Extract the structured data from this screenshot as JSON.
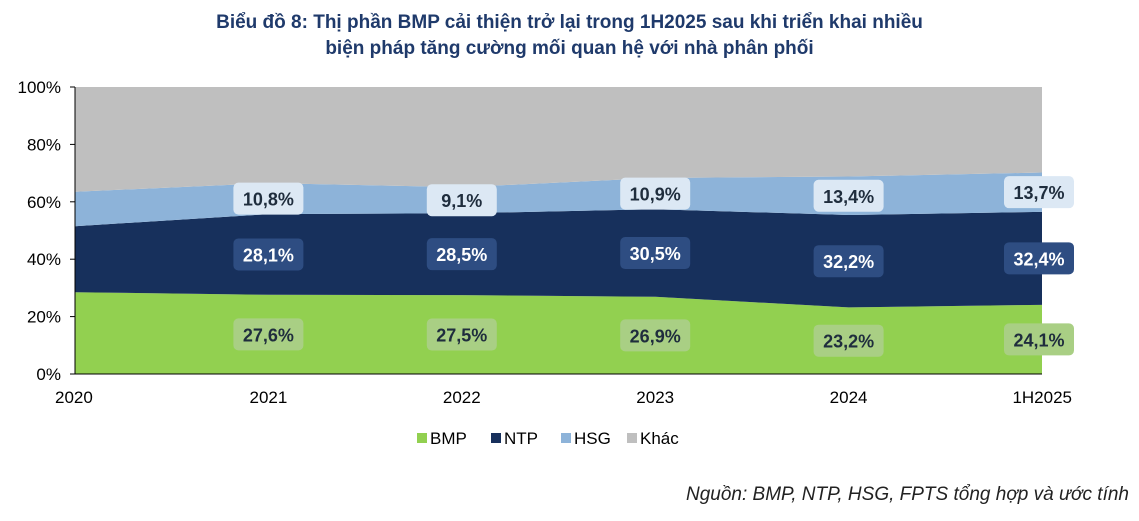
{
  "chart_data": {
    "type": "area",
    "stacked": true,
    "percent": true,
    "title_line1": "Biểu đồ 8: Thị phần BMP cải thiện trở lại trong 1H2025 sau khi triển khai nhiều",
    "title_line2": "biện pháp tăng cường mối quan hệ với nhà phân phối",
    "categories": [
      "2020",
      "2021",
      "2022",
      "2023",
      "2024",
      "1H2025"
    ],
    "ylim": [
      0,
      100
    ],
    "yticks": [
      "0%",
      "20%",
      "40%",
      "60%",
      "80%",
      "100%"
    ],
    "series": [
      {
        "name": "BMP",
        "color": "#92d050",
        "values": [
          28.5,
          27.6,
          27.5,
          26.9,
          23.2,
          24.1
        ],
        "labels": [
          "",
          "27,6%",
          "27,5%",
          "26,9%",
          "23,2%",
          "24,1%"
        ]
      },
      {
        "name": "NTP",
        "color": "#17305c",
        "values": [
          23.0,
          28.1,
          28.5,
          30.5,
          32.2,
          32.4
        ],
        "labels": [
          "",
          "28,1%",
          "28,5%",
          "30,5%",
          "32,2%",
          "32,4%"
        ]
      },
      {
        "name": "HSG",
        "color": "#8db3d9",
        "values": [
          12.0,
          10.8,
          9.1,
          10.9,
          13.4,
          13.7
        ],
        "labels": [
          "",
          "10,8%",
          "9,1%",
          "10,9%",
          "13,4%",
          "13,7%"
        ]
      },
      {
        "name": "Khác",
        "color": "#bfbfbf",
        "values": [
          36.5,
          33.5,
          34.9,
          31.7,
          31.2,
          29.8
        ],
        "labels": [
          "",
          "",
          "",
          "",
          "",
          ""
        ]
      }
    ],
    "legend_position": "bottom"
  },
  "source": "Nguồn: BMP, NTP, HSG, FPTS tổng hợp và ước tính"
}
